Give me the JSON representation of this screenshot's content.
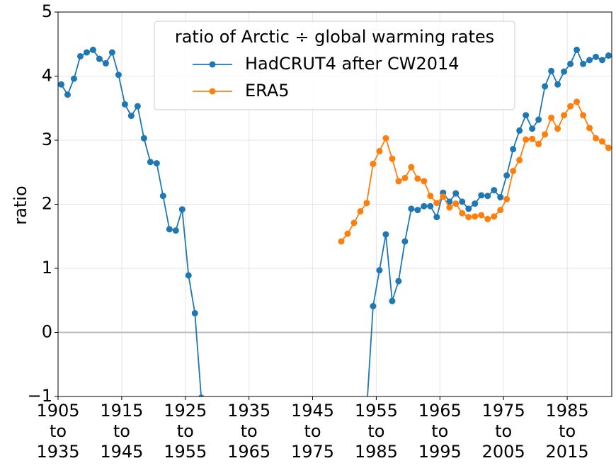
{
  "chart_data": {
    "type": "line",
    "ylabel": "ratio",
    "legend_title": "ratio of Arctic ÷ global warming rates",
    "legend_loc": "upper center",
    "grid": true,
    "hline": 0,
    "xlim": [
      1905,
      1992
    ],
    "ylim": [
      -1,
      5
    ],
    "yticks": [
      {
        "value": -1,
        "label": "−1"
      },
      0,
      1,
      2,
      3,
      4,
      5
    ],
    "xticks": [
      {
        "value": 1905,
        "label": "1905\nto\n1935"
      },
      {
        "value": 1915,
        "label": "1915\nto\n1945"
      },
      {
        "value": 1925,
        "label": "1925\nto\n1955"
      },
      {
        "value": 1935,
        "label": "1935\nto\n1965"
      },
      {
        "value": 1945,
        "label": "1945\nto\n1975"
      },
      {
        "value": 1955,
        "label": "1955\nto\n1985"
      },
      {
        "value": 1965,
        "label": "1965\nto\n1995"
      },
      {
        "value": 1975,
        "label": "1975\nto\n2005"
      },
      {
        "value": 1985,
        "label": "1985\nto\n2015"
      }
    ],
    "x": [
      1905.5,
      1906.5,
      1907.5,
      1908.5,
      1909.5,
      1910.5,
      1911.5,
      1912.5,
      1913.5,
      1914.5,
      1915.5,
      1916.5,
      1917.5,
      1918.5,
      1919.5,
      1920.5,
      1921.5,
      1922.5,
      1923.5,
      1924.5,
      1925.5,
      1926.5,
      1927.5,
      1928.5,
      1929.5,
      1930.5,
      1931.5,
      1932.5,
      1933.5,
      1934.5,
      1935.5,
      1936.5,
      1937.5,
      1938.5,
      1939.5,
      1940.5,
      1941.5,
      1942.5,
      1943.5,
      1944.5,
      1945.5,
      1946.5,
      1947.5,
      1948.5,
      1949.5,
      1950.5,
      1951.5,
      1952.5,
      1953.5,
      1954.5,
      1955.5,
      1956.5,
      1957.5,
      1958.5,
      1959.5,
      1960.5,
      1961.5,
      1962.5,
      1963.5,
      1964.5,
      1965.5,
      1966.5,
      1967.5,
      1968.5,
      1969.5,
      1970.5,
      1971.5,
      1972.5,
      1973.5,
      1974.5,
      1975.5,
      1976.5,
      1977.5,
      1978.5,
      1979.5,
      1980.5,
      1981.5,
      1982.5,
      1983.5,
      1984.5,
      1985.5,
      1986.5,
      1987.5,
      1988.5,
      1989.5,
      1990.5,
      1991.5
    ],
    "series": [
      {
        "name": "HadCRUT4 after CW2014",
        "color": "#1f77b4",
        "values": [
          3.87,
          3.71,
          3.96,
          4.31,
          4.37,
          4.41,
          4.27,
          4.2,
          4.37,
          4.02,
          3.56,
          3.38,
          3.53,
          3.03,
          2.66,
          2.64,
          2.13,
          1.61,
          1.59,
          1.92,
          0.89,
          0.3,
          -1.02,
          null,
          null,
          null,
          null,
          null,
          null,
          null,
          null,
          null,
          null,
          null,
          null,
          null,
          null,
          null,
          null,
          null,
          null,
          null,
          null,
          null,
          null,
          null,
          null,
          null,
          -1.2,
          0.41,
          0.97,
          1.53,
          0.49,
          0.8,
          1.42,
          1.93,
          1.91,
          1.97,
          1.97,
          1.8,
          2.18,
          2.04,
          2.17,
          2.04,
          1.93,
          2.01,
          2.14,
          2.13,
          2.22,
          2.11,
          2.45,
          2.86,
          3.15,
          3.39,
          3.18,
          3.32,
          3.84,
          4.08,
          3.87,
          4.07,
          4.19,
          4.41,
          4.19,
          4.25,
          4.3,
          4.25,
          4.32
        ]
      },
      {
        "name": "ERA5",
        "color": "#ff7f0e",
        "values": [
          null,
          null,
          null,
          null,
          null,
          null,
          null,
          null,
          null,
          null,
          null,
          null,
          null,
          null,
          null,
          null,
          null,
          null,
          null,
          null,
          null,
          null,
          null,
          null,
          null,
          null,
          null,
          null,
          null,
          null,
          null,
          null,
          null,
          null,
          null,
          null,
          null,
          null,
          null,
          null,
          null,
          null,
          null,
          null,
          1.42,
          1.54,
          1.71,
          1.89,
          2.02,
          2.63,
          2.83,
          3.03,
          2.71,
          2.36,
          2.41,
          2.58,
          2.4,
          2.36,
          2.13,
          2.02,
          2.12,
          1.95,
          2.01,
          1.86,
          1.8,
          1.81,
          1.83,
          1.77,
          1.81,
          1.91,
          2.08,
          2.52,
          2.69,
          3.01,
          3.02,
          2.94,
          3.09,
          3.35,
          3.18,
          3.39,
          3.53,
          3.6,
          3.39,
          3.19,
          3.03,
          2.98,
          2.88
        ]
      }
    ]
  }
}
